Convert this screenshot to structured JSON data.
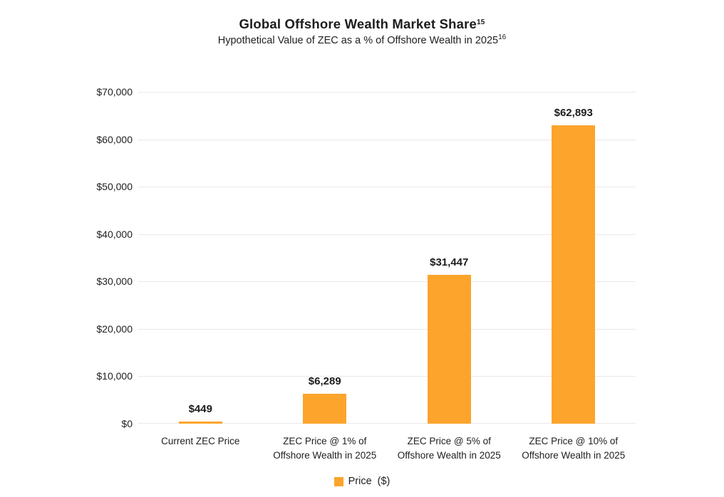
{
  "header": {
    "title": "Global Offshore Wealth Market Share",
    "title_footnote": "15",
    "subtitle": "Hypothetical Value of ZEC as a % of Offshore Wealth in 2025",
    "subtitle_footnote": "16"
  },
  "legend": {
    "label": "Price ($)",
    "swatch_color": "#FCA42C"
  },
  "chart_data": {
    "type": "bar",
    "title": "Global Offshore Wealth Market Share",
    "subtitle": "Hypothetical Value of ZEC as a % of Offshore Wealth in 2025",
    "categories": [
      "Current ZEC Price",
      "ZEC Price @ 1% of Offshore Wealth in 2025",
      "ZEC Price @ 5% of Offshore Wealth in 2025",
      "ZEC Price @ 10% of Offshore Wealth in 2025"
    ],
    "category_label_lines": [
      [
        "Current ZEC Price"
      ],
      [
        "ZEC Price @ 1% of",
        "Offshore Wealth in 2025"
      ],
      [
        "ZEC Price @ 5% of",
        "Offshore Wealth in 2025"
      ],
      [
        "ZEC Price @ 10% of",
        "Offshore Wealth in 2025"
      ]
    ],
    "series": [
      {
        "name": "Price ($)",
        "values": [
          449,
          6289,
          31447,
          62893
        ],
        "color": "#FCA42C"
      }
    ],
    "value_labels": [
      "$449",
      "$6,289",
      "$31,447",
      "$62,893"
    ],
    "xlabel": "",
    "ylabel": "",
    "ylim": [
      0,
      70000
    ],
    "ytick_values": [
      0,
      10000,
      20000,
      30000,
      40000,
      50000,
      60000,
      70000
    ],
    "ytick_labels": [
      "$0",
      "$10,000",
      "$20,000",
      "$30,000",
      "$40,000",
      "$50,000",
      "$60,000",
      "$70,000"
    ],
    "grid": true,
    "gridline_color": "#e9e9e9",
    "legend_position": "bottom"
  }
}
